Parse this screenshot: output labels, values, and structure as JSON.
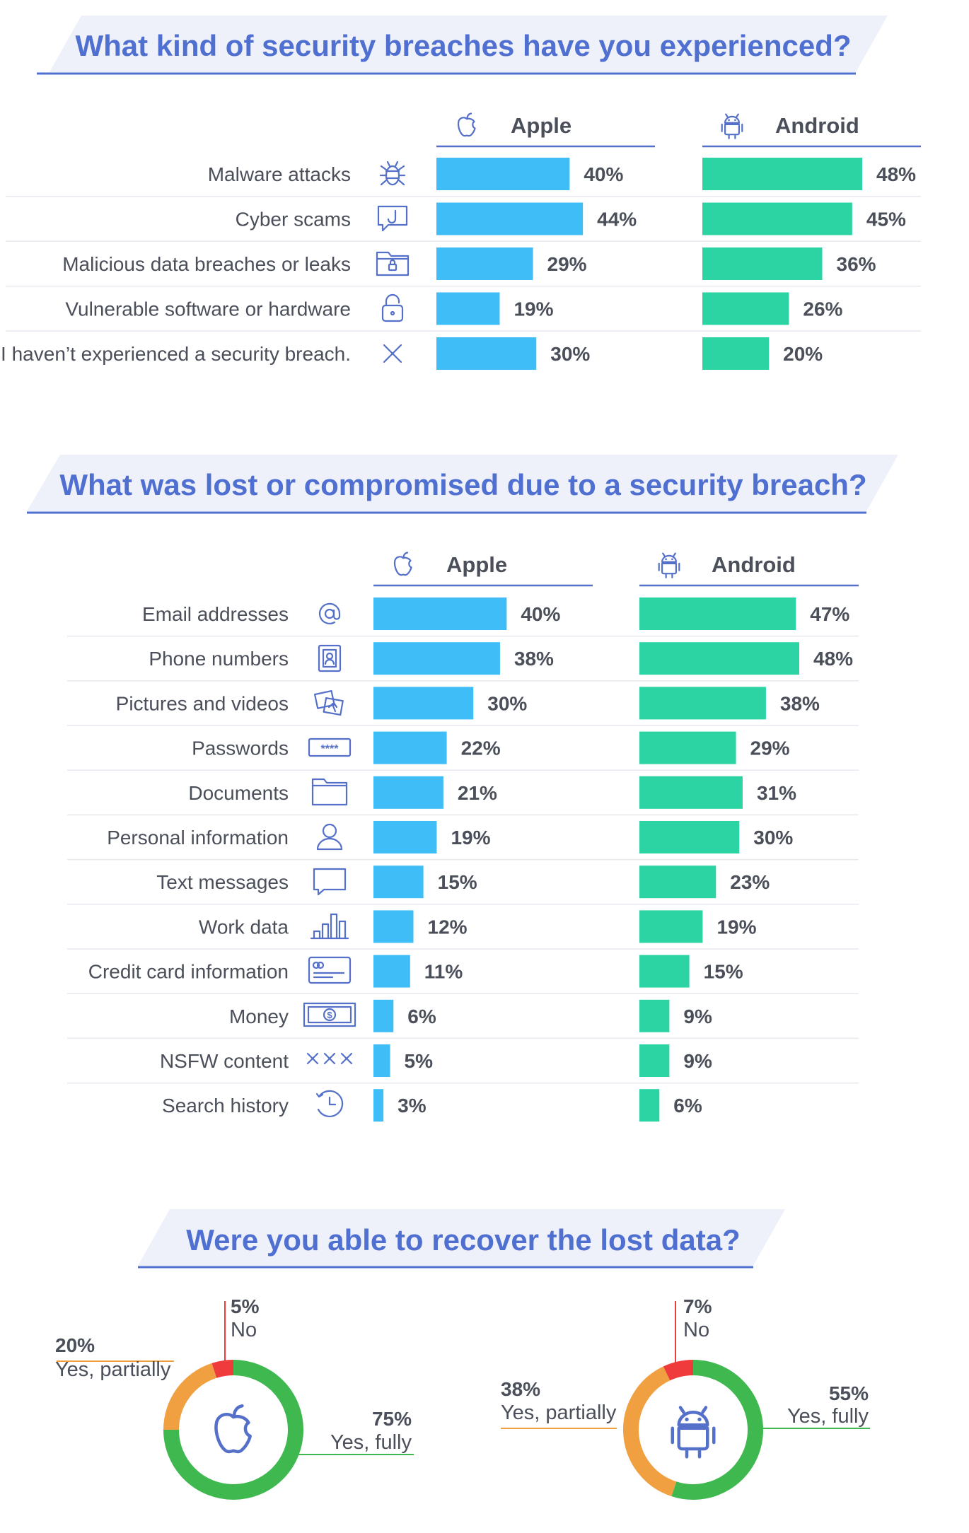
{
  "colors": {
    "apple": "#3ebdf7",
    "android": "#2dd4a3",
    "accent": "#4f6fd1",
    "heading_band": "#eef1fa",
    "icon": "#5470c8",
    "donut_fully": "#3fb84f",
    "donut_partially": "#f0a040",
    "donut_no": "#ef3b3b"
  },
  "headings": [
    "What kind of security breaches have you experienced?",
    "What was lost or compromised due to a security breach?",
    "Were you able to recover the lost data?"
  ],
  "legend": {
    "apple": {
      "label": "Apple",
      "icon": "apple-icon"
    },
    "android": {
      "label": "Android",
      "icon": "android-icon"
    }
  },
  "chart_data": [
    {
      "type": "bar",
      "orientation": "horizontal",
      "title": "What kind of security breaches have you experienced?",
      "categories": [
        "Malware attacks",
        "Cyber scams",
        "Malicious data breaches or leaks",
        "Vulnerable software or hardware",
        "I haven’t experienced a security breach."
      ],
      "icons": [
        "bug-icon",
        "hook-icon",
        "folder-lock-icon",
        "padlock-icon",
        "x-icon"
      ],
      "series": [
        {
          "name": "Apple",
          "values": [
            40,
            44,
            29,
            19,
            30
          ]
        },
        {
          "name": "Android",
          "values": [
            48,
            45,
            36,
            26,
            20
          ]
        }
      ],
      "value_suffix": "%",
      "xlim": [
        0,
        48
      ]
    },
    {
      "type": "bar",
      "orientation": "horizontal",
      "title": "What was lost or compromised due to a security breach?",
      "categories": [
        "Email addresses",
        "Phone numbers",
        "Pictures and videos",
        "Passwords",
        "Documents",
        "Personal information",
        "Text messages",
        "Work data",
        "Credit card information",
        "Money",
        "NSFW content",
        "Search history"
      ],
      "icons": [
        "at-sign-icon",
        "contact-card-icon",
        "pictures-icon",
        "password-icon",
        "folder-icon",
        "person-icon",
        "message-icon",
        "bar-chart-icon",
        "credit-card-icon",
        "money-icon",
        "xxx-icon",
        "clock-icon"
      ],
      "series": [
        {
          "name": "Apple",
          "values": [
            40,
            38,
            30,
            22,
            21,
            19,
            15,
            12,
            11,
            6,
            5,
            3
          ]
        },
        {
          "name": "Android",
          "values": [
            47,
            48,
            38,
            29,
            31,
            30,
            23,
            19,
            15,
            9,
            9,
            6
          ]
        }
      ],
      "value_suffix": "%",
      "xlim": [
        0,
        48
      ]
    },
    {
      "type": "pie",
      "variant": "donut",
      "title": "Were you able to recover the lost data?",
      "center_icon": "apple-icon",
      "labels": [
        "Yes, fully",
        "Yes, partially",
        "No"
      ],
      "values": [
        75,
        20,
        5
      ],
      "display": [
        "75%",
        "20%",
        "5%"
      ],
      "colors": [
        "#3fb84f",
        "#f0a040",
        "#ef3b3b"
      ]
    },
    {
      "type": "pie",
      "variant": "donut",
      "title": "Were you able to recover the lost data?",
      "center_icon": "android-icon",
      "labels": [
        "Yes, fully",
        "Yes, partially",
        "No"
      ],
      "values": [
        55,
        38,
        7
      ],
      "display": [
        "55%",
        "38%",
        "7%"
      ],
      "colors": [
        "#3fb84f",
        "#f0a040",
        "#ef3b3b"
      ]
    }
  ]
}
